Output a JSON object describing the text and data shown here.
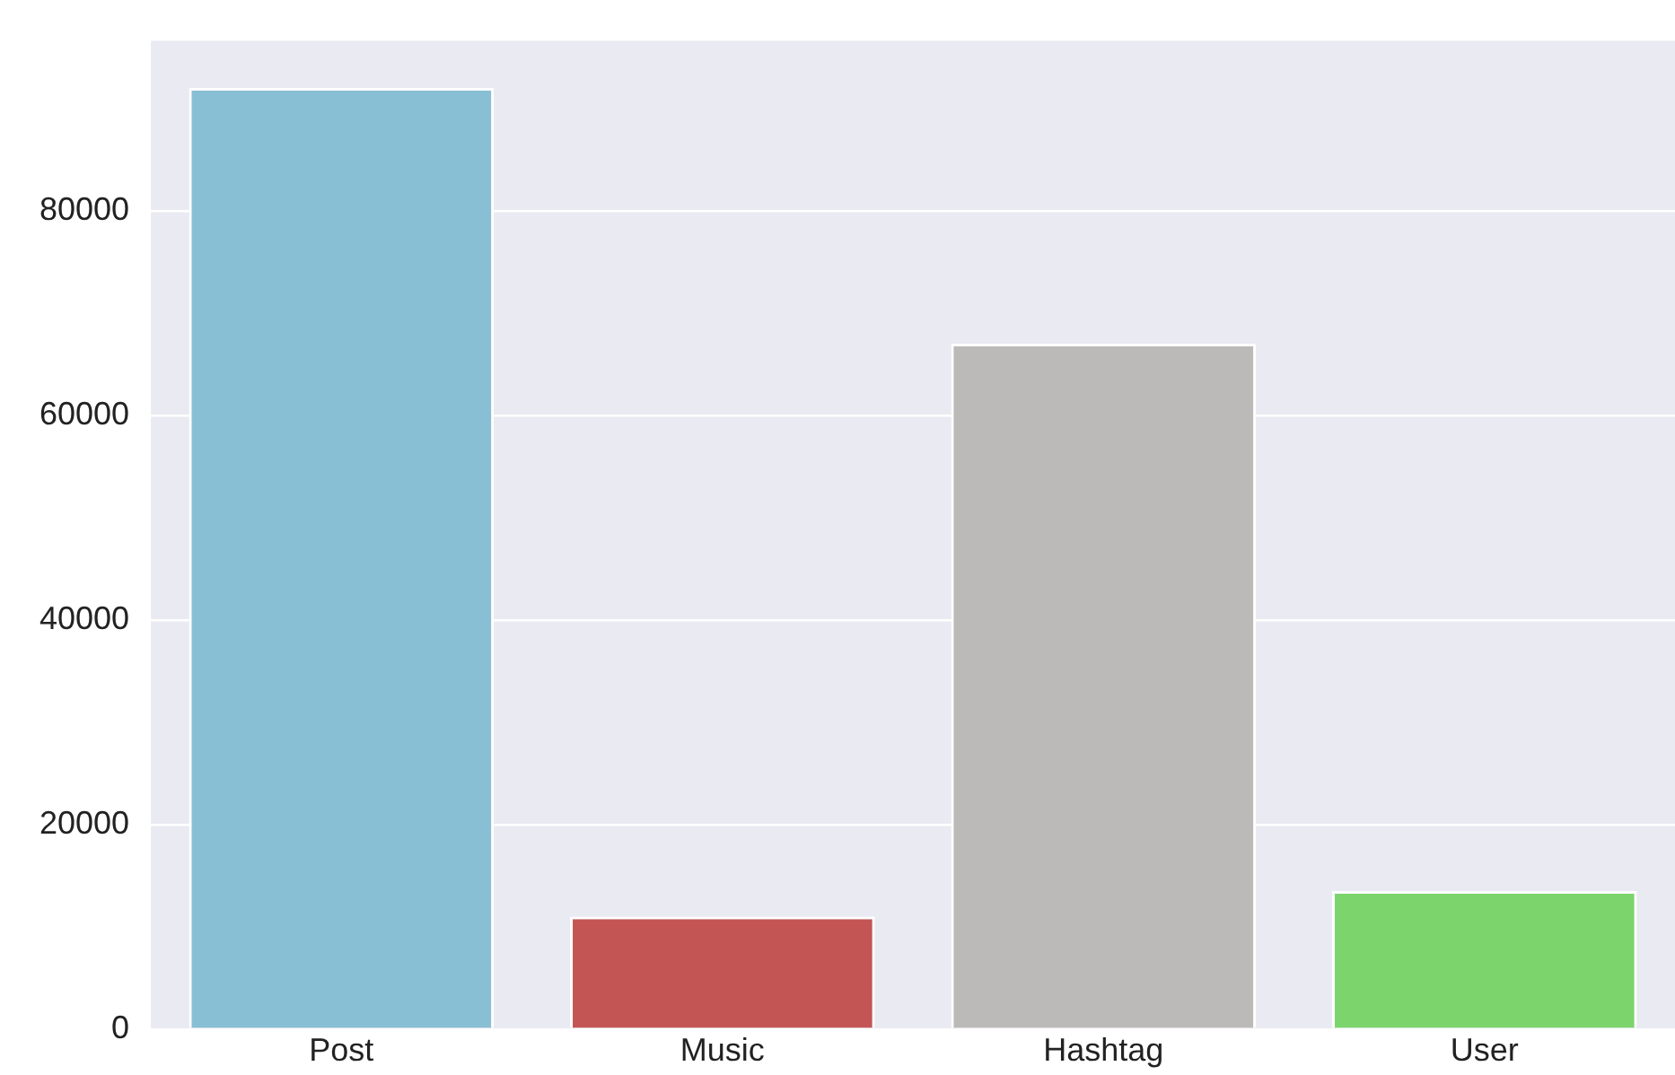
{
  "chart_data": {
    "type": "bar",
    "categories": [
      "Post",
      "Music",
      "Hashtag",
      "User"
    ],
    "values": [
      92000,
      11000,
      67000,
      13500
    ],
    "colors": [
      "#89bfd4",
      "#c45555",
      "#bbbab8",
      "#7bd56c"
    ],
    "ylim": [
      0,
      96600
    ],
    "yticks": [
      0,
      20000,
      40000,
      60000,
      80000
    ],
    "grid": "y",
    "legend": false
  }
}
